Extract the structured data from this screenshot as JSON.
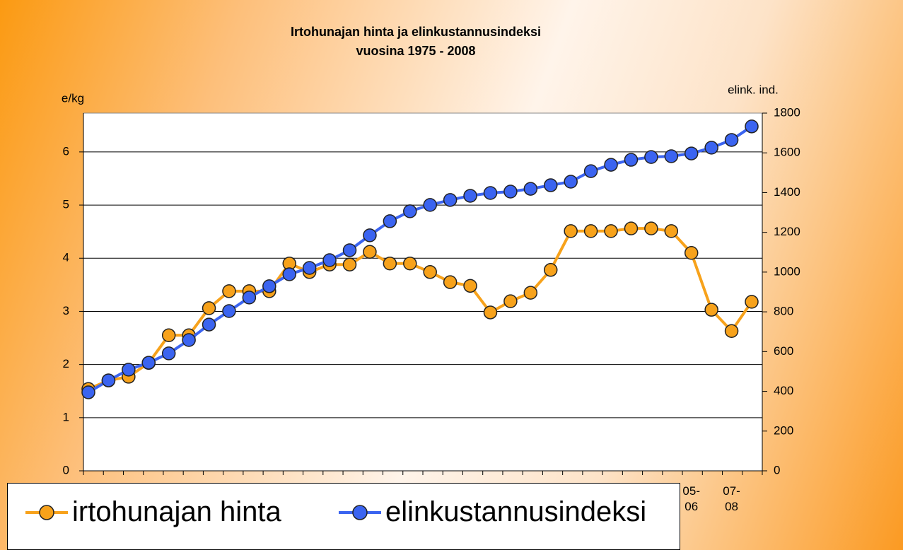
{
  "chart_data": {
    "type": "line",
    "title": "Irtohunajan hinta ja elinkustannusindeksi",
    "subtitle": "vuosina 1975 - 2008",
    "ylabel": "e/kg",
    "y2label": "elink. ind.",
    "categories": [
      null,
      null,
      null,
      null,
      null,
      null,
      null,
      null,
      null,
      null,
      null,
      null,
      null,
      null,
      null,
      null,
      null,
      null,
      null,
      null,
      null,
      null,
      null,
      null,
      null,
      null,
      null,
      null,
      null,
      null,
      "05-06",
      null,
      "07-08",
      null
    ],
    "series": [
      {
        "name": "irtohunajan hinta",
        "color": "#f7a21b",
        "axis": "y",
        "values": [
          1.54,
          1.7,
          1.77,
          2.03,
          2.55,
          2.55,
          3.06,
          3.38,
          3.38,
          3.38,
          3.9,
          3.74,
          3.88,
          3.88,
          4.12,
          3.9,
          3.9,
          3.74,
          3.55,
          3.48,
          2.98,
          3.19,
          3.35,
          3.78,
          4.51,
          4.51,
          4.51,
          4.56,
          4.56,
          4.51,
          4.1,
          3.03,
          2.63,
          3.18
        ]
      },
      {
        "name": "elinkustannusindeksi",
        "color": "#3b64f0",
        "axis": "y2",
        "values": [
          395,
          455,
          509,
          544,
          591,
          658,
          736,
          804,
          872,
          929,
          989,
          1021,
          1060,
          1110,
          1185,
          1256,
          1306,
          1338,
          1363,
          1384,
          1398,
          1405,
          1419,
          1437,
          1455,
          1508,
          1540,
          1565,
          1579,
          1583,
          1597,
          1626,
          1665,
          1733
        ]
      }
    ],
    "ylim": [
      0,
      6.73
    ],
    "yticks": [
      0,
      1,
      2,
      3,
      4,
      5,
      6
    ],
    "y2lim": [
      0,
      1800
    ],
    "y2ticks": [
      0,
      200,
      400,
      600,
      800,
      1000,
      1200,
      1400,
      1600,
      1800
    ],
    "grid": true,
    "legend": "bottom-left"
  }
}
